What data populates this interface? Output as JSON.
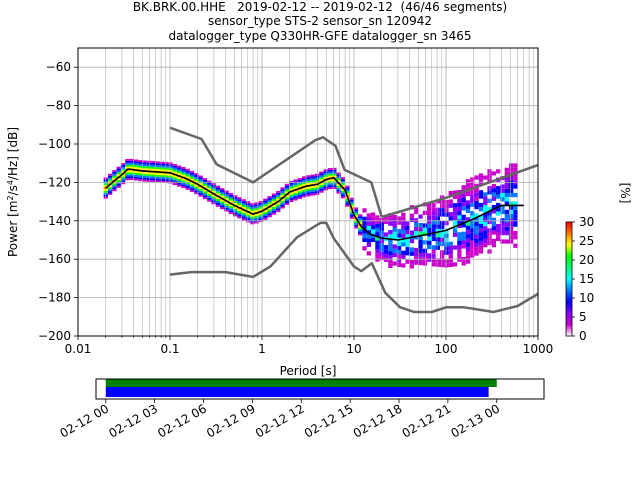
{
  "title": {
    "line1": "BK.BRK.00.HHE   2019-02-12 -- 2019-02-12  (46/46 segments)",
    "line2": "sensor_type STS-2 sensor_sn 120942",
    "line3": "datalogger_type Q330HR-GFE datalogger_sn 3465"
  },
  "chart_data": {
    "type": "heatmap",
    "xlabel": "Period [s]",
    "ylabel_parts": [
      "Power [m",
      "2",
      "/s",
      "4",
      "/Hz] [dB]"
    ],
    "xscale": "log",
    "xlim": [
      0.01,
      1000
    ],
    "ylim": [
      -200,
      -50
    ],
    "xticks": [
      {
        "value": 0.01,
        "label": "0.01"
      },
      {
        "value": 0.1,
        "label": "0.1"
      },
      {
        "value": 1,
        "label": "1"
      },
      {
        "value": 10,
        "label": "10"
      },
      {
        "value": 100,
        "label": "100"
      },
      {
        "value": 1000,
        "label": "1000"
      }
    ],
    "yticks": [
      {
        "value": -60,
        "label": "−60"
      },
      {
        "value": -80,
        "label": "−80"
      },
      {
        "value": -100,
        "label": "−100"
      },
      {
        "value": -120,
        "label": "−120"
      },
      {
        "value": -140,
        "label": "−140"
      },
      {
        "value": -160,
        "label": "−160"
      },
      {
        "value": -180,
        "label": "−180"
      },
      {
        "value": -200,
        "label": "−200"
      }
    ],
    "grid": true,
    "colorbar": {
      "label": "[%]",
      "range": [
        0,
        30
      ],
      "ticks": [
        {
          "value": 0,
          "label": "0"
        },
        {
          "value": 5,
          "label": "5"
        },
        {
          "value": 10,
          "label": "10"
        },
        {
          "value": 15,
          "label": "15"
        },
        {
          "value": 20,
          "label": "20"
        },
        {
          "value": 25,
          "label": "25"
        },
        {
          "value": 30,
          "label": "30"
        }
      ],
      "colors": [
        "#ffffff",
        "#cc00cc",
        "#8800ff",
        "#0000ff",
        "#0077ff",
        "#00ffff",
        "#00ff77",
        "#00ff00",
        "#ffff00",
        "#ff7700",
        "#ff0000"
      ]
    },
    "high_noise_model": {
      "x": [
        0.1,
        0.22,
        0.32,
        0.8,
        3.8,
        4.6,
        6.3,
        7.9,
        15.4,
        20
      ],
      "y": [
        -91.5,
        -97.4,
        -110.5,
        -120,
        -98,
        -96.5,
        -101,
        -113.5,
        -120,
        -138
      ]
    },
    "high_noise_model_ext": {
      "x": [
        20,
        100,
        1000
      ],
      "y": [
        -138,
        -128,
        -111
      ]
    },
    "low_noise_model": {
      "x": [
        0.1,
        0.17,
        0.4,
        0.8,
        1.24,
        2.4,
        4.3,
        5.0,
        6.0,
        10,
        12,
        15.6,
        21.9,
        31.6,
        45,
        70,
        101,
        154,
        328,
        600,
        1000
      ],
      "y": [
        -168,
        -166.7,
        -166.7,
        -169.2,
        -163.7,
        -148.6,
        -141.1,
        -141.1,
        -149,
        -163.8,
        -166.2,
        -162.1,
        -177.5,
        -185,
        -187.5,
        -187.5,
        -185,
        -185,
        -187.5,
        -184.4,
        -178
      ]
    },
    "mean_psd": {
      "x": [
        0.02,
        0.025,
        0.03,
        0.035,
        0.05,
        0.1,
        0.15,
        0.2,
        0.3,
        0.5,
        0.8,
        1,
        1.5,
        2,
        3,
        4,
        5,
        6,
        8,
        10,
        12,
        15,
        20,
        30,
        50,
        100,
        200,
        400,
        700
      ],
      "y": [
        -125,
        -120,
        -117,
        -115,
        -115.5,
        -116,
        -119,
        -122,
        -127,
        -133,
        -137,
        -136,
        -131,
        -126,
        -123,
        -121.5,
        -119.5,
        -118.5,
        -125,
        -138,
        -145,
        -148,
        -150,
        -151,
        -148,
        -144,
        -140,
        -137,
        -136
      ]
    },
    "mode_psd": {
      "x": [
        0.02,
        0.025,
        0.03,
        0.035,
        0.05,
        0.1,
        0.15,
        0.2,
        0.3,
        0.5,
        0.8,
        1,
        1.5,
        2,
        3,
        4,
        5,
        6,
        8,
        10,
        12,
        15,
        20,
        30,
        50,
        100,
        200,
        400,
        700
      ],
      "y": [
        -123,
        -119,
        -116,
        -113,
        -114,
        -115,
        -118,
        -121,
        -126,
        -132,
        -136.5,
        -135,
        -130,
        -125,
        -122,
        -121,
        -118.5,
        -117.5,
        -124,
        -137,
        -143,
        -147,
        -149,
        -150,
        -148,
        -145,
        -139,
        -132,
        -132
      ]
    },
    "timeline": {
      "ticks": [
        {
          "label": "02-12 00"
        },
        {
          "label": "02-12 03"
        },
        {
          "label": "02-12 06"
        },
        {
          "label": "02-12 09"
        },
        {
          "label": "02-12 12"
        },
        {
          "label": "02-12 15"
        },
        {
          "label": "02-12 18"
        },
        {
          "label": "02-12 21"
        },
        {
          "label": "02-13 00"
        }
      ],
      "range_hours": [
        -0.6,
        26.9
      ],
      "green_bar_hours": [
        0,
        24.0
      ],
      "blue_bar_hours": [
        0,
        23.5
      ],
      "green_color": "#008000",
      "blue_color": "#0000ff"
    }
  }
}
